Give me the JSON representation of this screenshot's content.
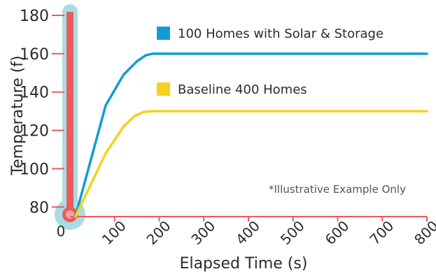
{
  "chart_data": {
    "type": "line",
    "title": "",
    "xlabel": "Elapsed Time (s)",
    "ylabel": "Temperature (f)",
    "xlim": [
      0,
      800
    ],
    "ylim": [
      75,
      180
    ],
    "x_ticks": [
      "0",
      "100",
      "200",
      "300",
      "400",
      "500",
      "600",
      "700",
      "800"
    ],
    "y_ticks": [
      "80",
      "100",
      "120",
      "140",
      "160",
      "180"
    ],
    "grid": false,
    "legend_position": "top-right",
    "annotation": "*Illustrative Example Only",
    "series": [
      {
        "name": "100 Homes with Solar & Storage",
        "color": "#139bd9",
        "x": [
          12,
          80,
          120,
          150,
          170,
          185,
          200,
          800
        ],
        "y": [
          75,
          133,
          149,
          156,
          159.2,
          160,
          160,
          160
        ]
      },
      {
        "name": "Baseline 400 Homes",
        "color": "#f5d21b",
        "x": [
          12,
          80,
          120,
          145,
          165,
          180,
          200,
          800
        ],
        "y": [
          75,
          108,
          122,
          127.5,
          129.6,
          130,
          130,
          130
        ]
      }
    ],
    "thermometer": {
      "tube_color": "#a9dde5",
      "fill_color": "#ea5b5b",
      "fill_to": 180
    },
    "x_axis_color": "#ea5b5b"
  }
}
